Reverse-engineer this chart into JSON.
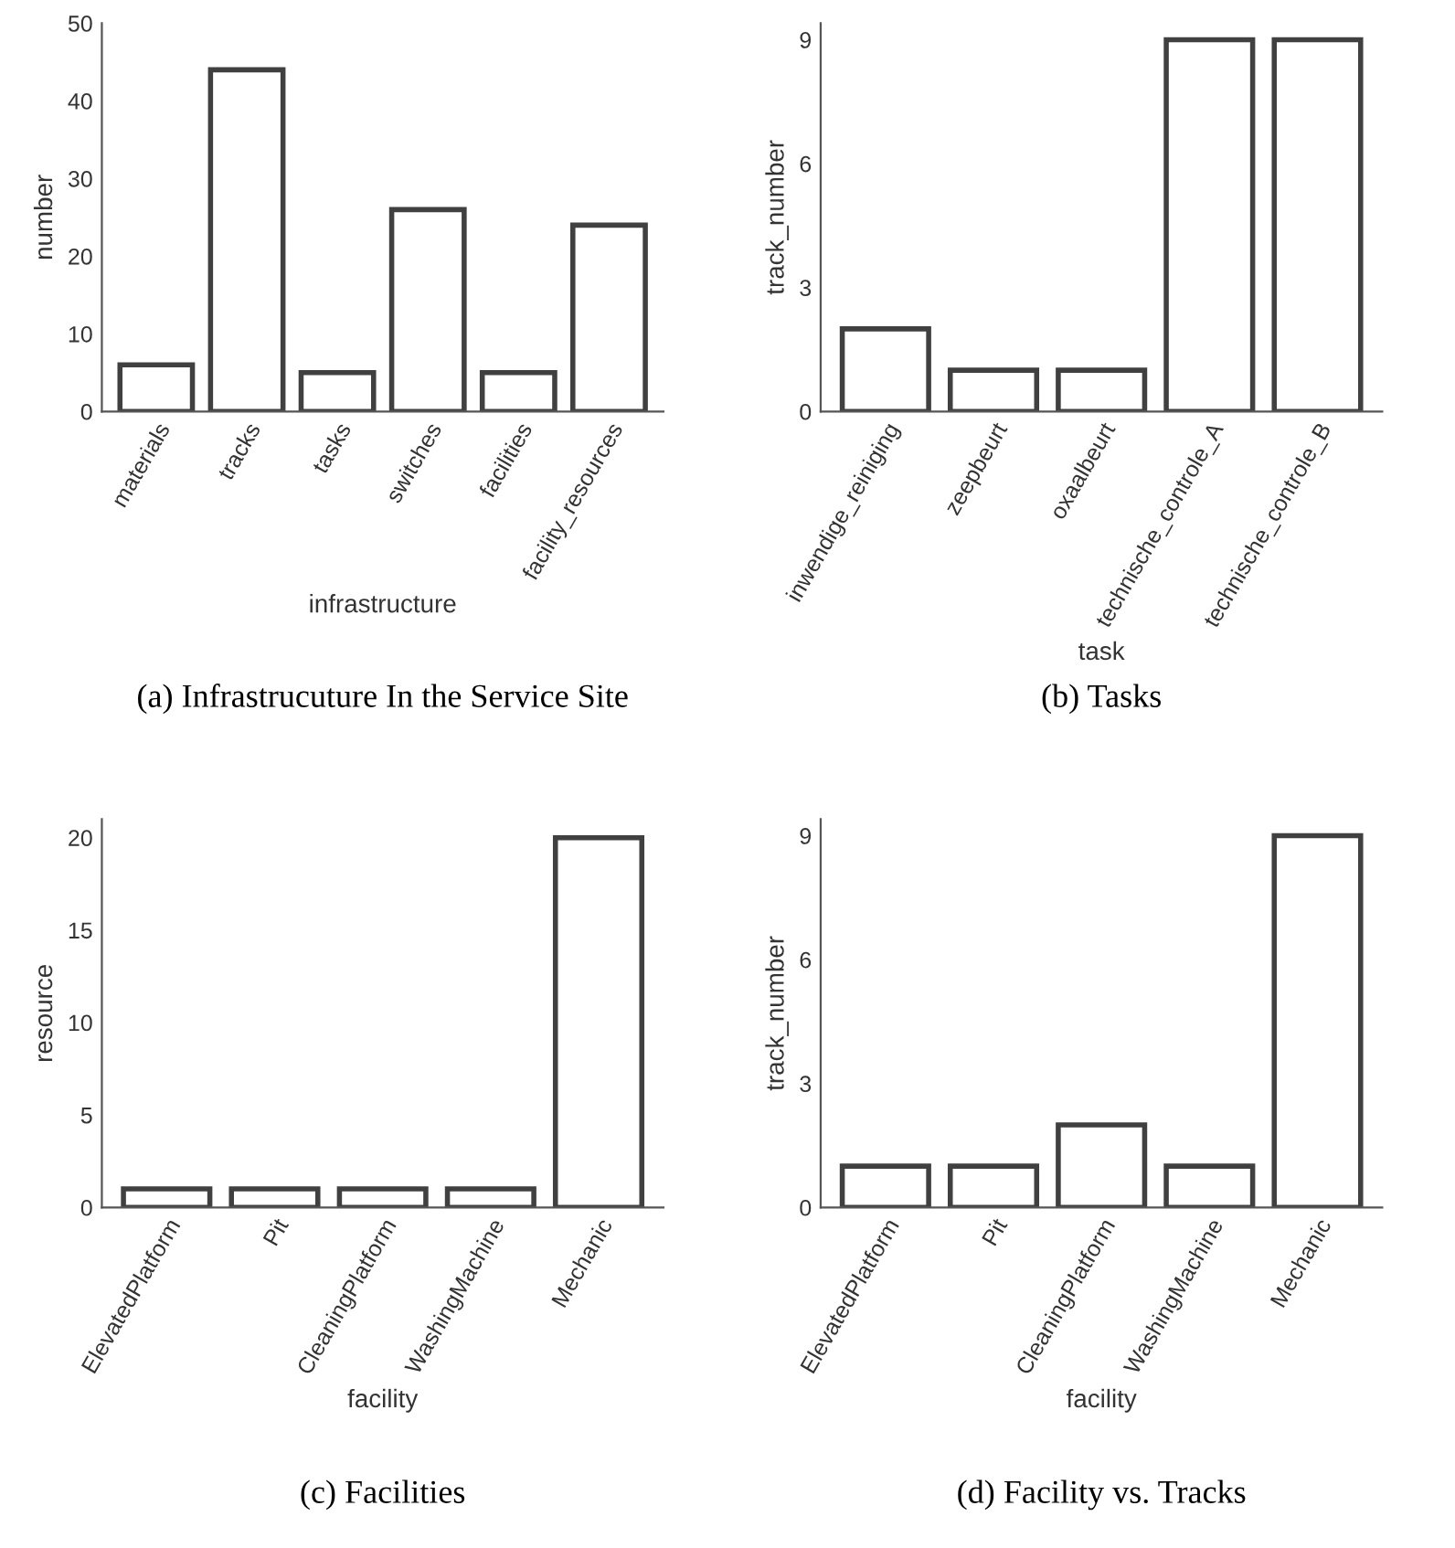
{
  "chart_data": [
    {
      "type": "bar",
      "title": "(a) Infrastrucuture In the Service Site",
      "xlabel": "infrastructure",
      "ylabel": "number",
      "categories": [
        "materials",
        "tracks",
        "tasks",
        "switches",
        "facilities",
        "facility_resources"
      ],
      "values": [
        6,
        44,
        5,
        26,
        5,
        24
      ],
      "color": "#404040",
      "ylim": [
        0,
        50
      ],
      "yticks": [
        0,
        10,
        20,
        30,
        40,
        50
      ],
      "grid": false
    },
    {
      "type": "bar",
      "title": "(b) Tasks",
      "xlabel": "task",
      "ylabel": "track_number",
      "categories": [
        "inwendige_reiniging",
        "zeepbeurt",
        "oxaalbeurt",
        "technische_controle_A",
        "technische_controle_B"
      ],
      "values": [
        2,
        1,
        1,
        9,
        9
      ],
      "color": "#404040",
      "ylim": [
        0,
        9.4
      ],
      "yticks": [
        0,
        3,
        6,
        9
      ],
      "grid": false
    },
    {
      "type": "bar",
      "title": "(c) Facilities",
      "xlabel": "facility",
      "ylabel": "resource",
      "categories": [
        "ElevatedPlatform",
        "Pit",
        "CleaningPlatform",
        "WashingMachine",
        "Mechanic"
      ],
      "values": [
        1,
        1,
        1,
        1,
        20
      ],
      "color": "#404040",
      "ylim": [
        0,
        21
      ],
      "yticks": [
        0,
        5,
        10,
        15,
        20
      ],
      "grid": false
    },
    {
      "type": "bar",
      "title": "(d) Facility vs. Tracks",
      "xlabel": "facility",
      "ylabel": "track_number",
      "categories": [
        "ElevatedPlatform",
        "Pit",
        "CleaningPlatform",
        "WashingMachine",
        "Mechanic"
      ],
      "values": [
        1,
        1,
        2,
        1,
        9
      ],
      "color": "#404040",
      "ylim": [
        0,
        9.4
      ],
      "yticks": [
        0,
        3,
        6,
        9
      ],
      "grid": false
    }
  ]
}
